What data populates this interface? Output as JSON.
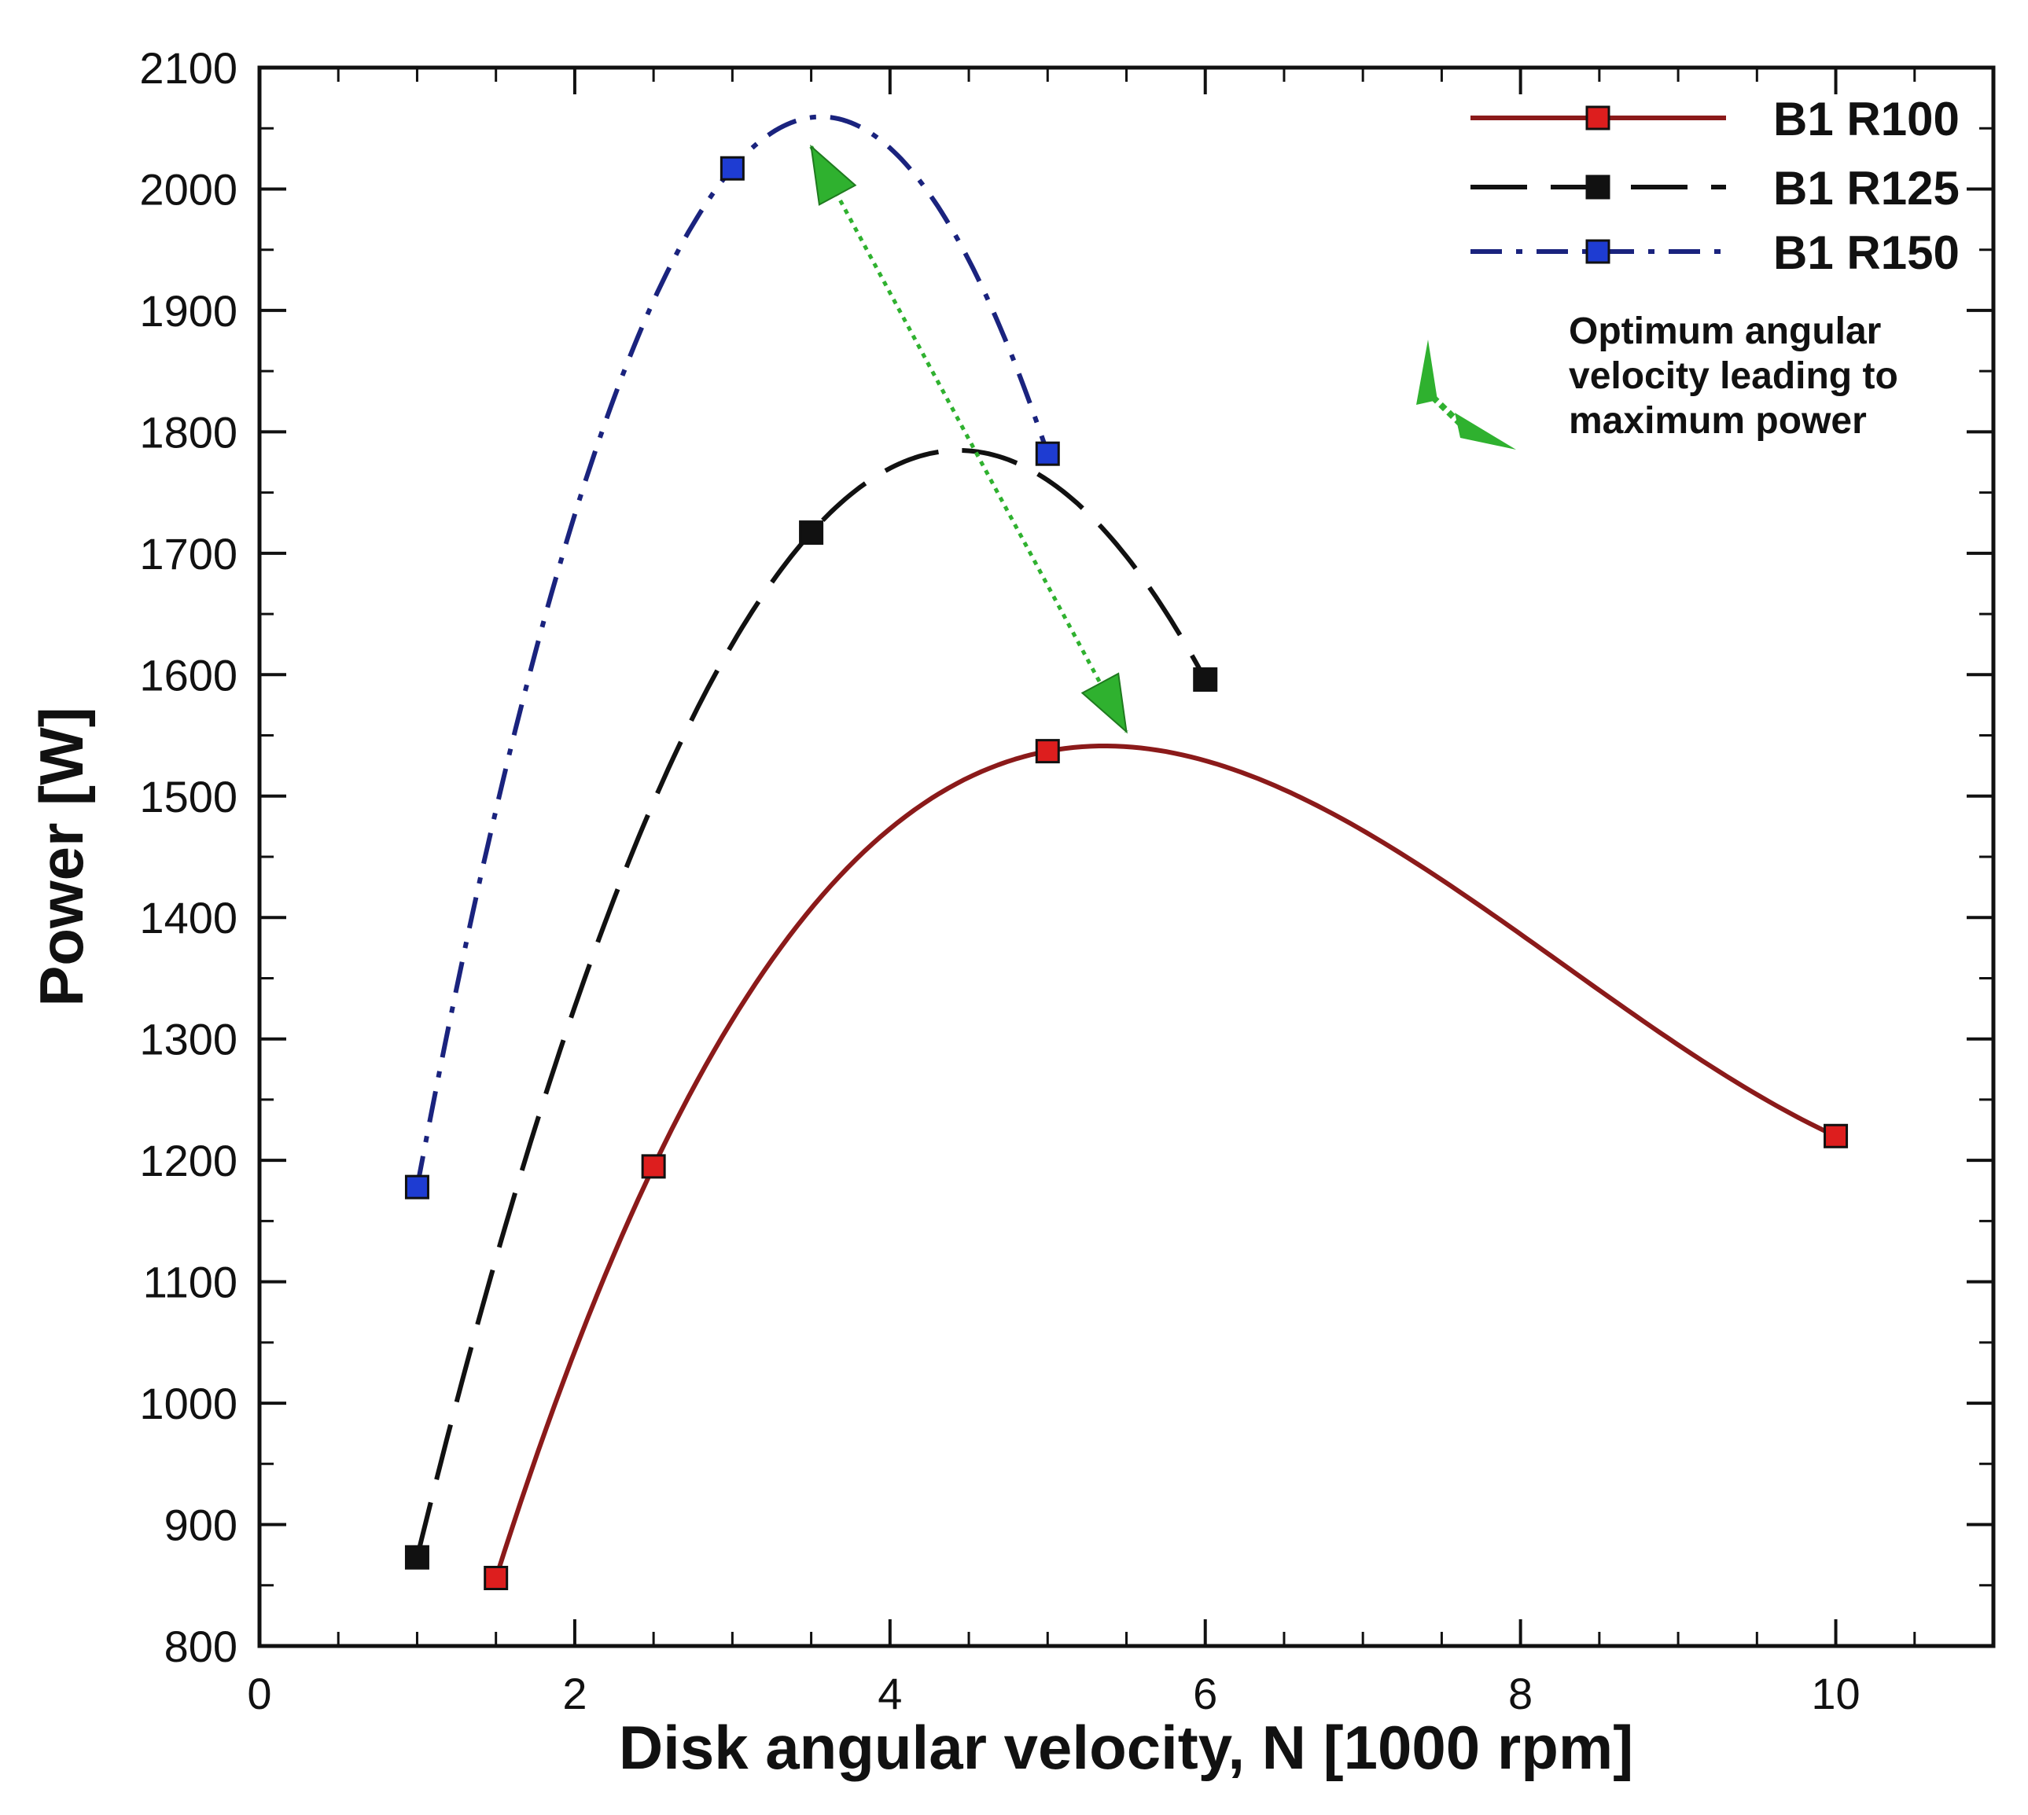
{
  "chart_data": {
    "type": "line",
    "title": "",
    "xlabel": "Disk angular velocity, N [1000 rpm]",
    "ylabel": "Power [W]",
    "xlim": [
      0,
      11
    ],
    "ylim": [
      800,
      2100
    ],
    "xticks": [
      0,
      2,
      4,
      6,
      8,
      10
    ],
    "xticks_minor": [
      0.5,
      1,
      1.5,
      2.5,
      3,
      3.5,
      4.5,
      5,
      5.5,
      6.5,
      7,
      7.5,
      8.5,
      9,
      9.5,
      10.5
    ],
    "yticks": [
      800,
      900,
      1000,
      1100,
      1200,
      1300,
      1400,
      1500,
      1600,
      1700,
      1800,
      1900,
      2000,
      2100
    ],
    "grid": false,
    "legend_position": "top-right",
    "series": [
      {
        "name": "B1 R100",
        "style": "solid",
        "color": "#8b1a1a",
        "marker_color": "#dd1e1e",
        "x": [
          1.5,
          2.5,
          5,
          10
        ],
        "y": [
          856,
          1195,
          1537,
          1220
        ]
      },
      {
        "name": "B1 R125",
        "style": "dashed",
        "color": "#111111",
        "marker_color": "#111111",
        "x": [
          1,
          3.5,
          6
        ],
        "y": [
          873,
          1717,
          1596
        ]
      },
      {
        "name": "B1 R150",
        "style": "dashdot",
        "color": "#1a237e",
        "marker_color": "#1e3cd2",
        "x": [
          1,
          3,
          5
        ],
        "y": [
          1178,
          2017,
          1782
        ]
      }
    ],
    "annotation": {
      "text": [
        "Optimum angular",
        "velocity leading to",
        "maximum power"
      ],
      "arrow_color": "#2fb12f",
      "optimum_points": [
        {
          "x": 3.5,
          "y": 2035
        },
        {
          "x": 5.5,
          "y": 1553
        }
      ]
    }
  }
}
